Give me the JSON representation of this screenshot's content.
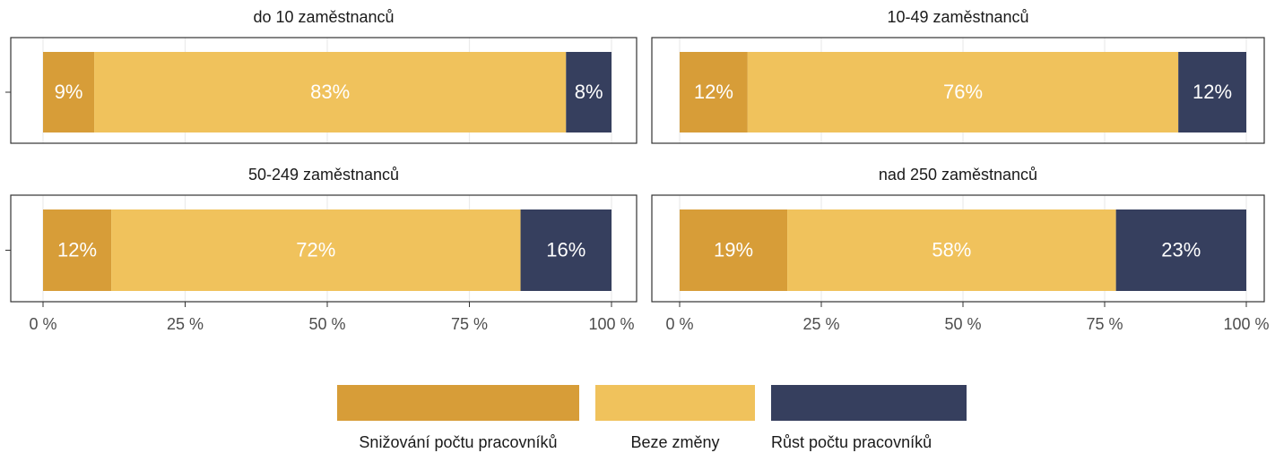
{
  "chart_data": {
    "type": "bar",
    "orientation": "horizontal",
    "stacked": true,
    "facets": true,
    "categories": [
      "do 10 zaměstnanců",
      "10-49 zaměstnanců",
      "50-249 zaměstnanců",
      "nad 250 zaměstnanců"
    ],
    "series": [
      {
        "name": "Snižování počtu pracovníků",
        "color": "#d79d38",
        "values": [
          9,
          12,
          12,
          19
        ],
        "value_labels": [
          "9%",
          "12%",
          "12%",
          "19%"
        ]
      },
      {
        "name": "Beze změny",
        "color": "#f0c25c",
        "values": [
          83,
          76,
          72,
          58
        ],
        "value_labels": [
          "83%",
          "76%",
          "72%",
          "58%"
        ]
      },
      {
        "name": "Růst počtu pracovníků",
        "color": "#363f5e",
        "values": [
          8,
          12,
          16,
          23
        ],
        "value_labels": [
          "8%",
          "12%",
          "16%",
          "23%"
        ]
      }
    ],
    "xlim": [
      0,
      100
    ],
    "xticks": [
      {
        "value": 0,
        "label": "0 %"
      },
      {
        "value": 25,
        "label": "25 %"
      },
      {
        "value": 50,
        "label": "50 %"
      },
      {
        "value": 75,
        "label": "75 %"
      },
      {
        "value": 100,
        "label": "100 %"
      }
    ],
    "grid": true,
    "legend": "bottom"
  }
}
